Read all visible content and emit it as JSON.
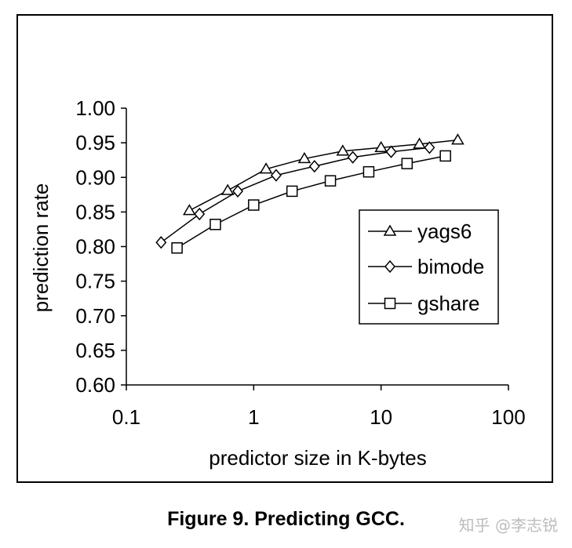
{
  "chart_data": {
    "type": "line",
    "title": "",
    "xlabel": "predictor size in K-bytes",
    "ylabel": "prediction rate",
    "x_scale": "log",
    "xlim": [
      0.1,
      100
    ],
    "ylim": [
      0.6,
      1.0
    ],
    "x_ticks": [
      "0.1",
      "1",
      "10",
      "100"
    ],
    "y_ticks": [
      "1.00",
      "0.95",
      "0.90",
      "0.85",
      "0.80",
      "0.75",
      "0.70",
      "0.65",
      "0.60"
    ],
    "grid": false,
    "legend_position": "right",
    "series": [
      {
        "name": "yags6",
        "marker": "triangle",
        "x": [
          0.3125,
          0.625,
          1.25,
          2.5,
          5,
          10,
          20,
          40
        ],
        "y": [
          0.852,
          0.881,
          0.912,
          0.927,
          0.938,
          0.943,
          0.948,
          0.954
        ]
      },
      {
        "name": "bimode",
        "marker": "diamond",
        "x": [
          0.1875,
          0.375,
          0.75,
          1.5,
          3,
          6,
          12,
          24
        ],
        "y": [
          0.806,
          0.847,
          0.88,
          0.903,
          0.916,
          0.929,
          0.937,
          0.943
        ]
      },
      {
        "name": "gshare",
        "marker": "square",
        "x": [
          0.25,
          0.5,
          1,
          2,
          4,
          8,
          16,
          32
        ],
        "y": [
          0.798,
          0.832,
          0.86,
          0.88,
          0.895,
          0.908,
          0.92,
          0.931
        ]
      }
    ]
  },
  "caption": "Figure 9. Predicting GCC.",
  "watermark": "知乎 @李志锐"
}
